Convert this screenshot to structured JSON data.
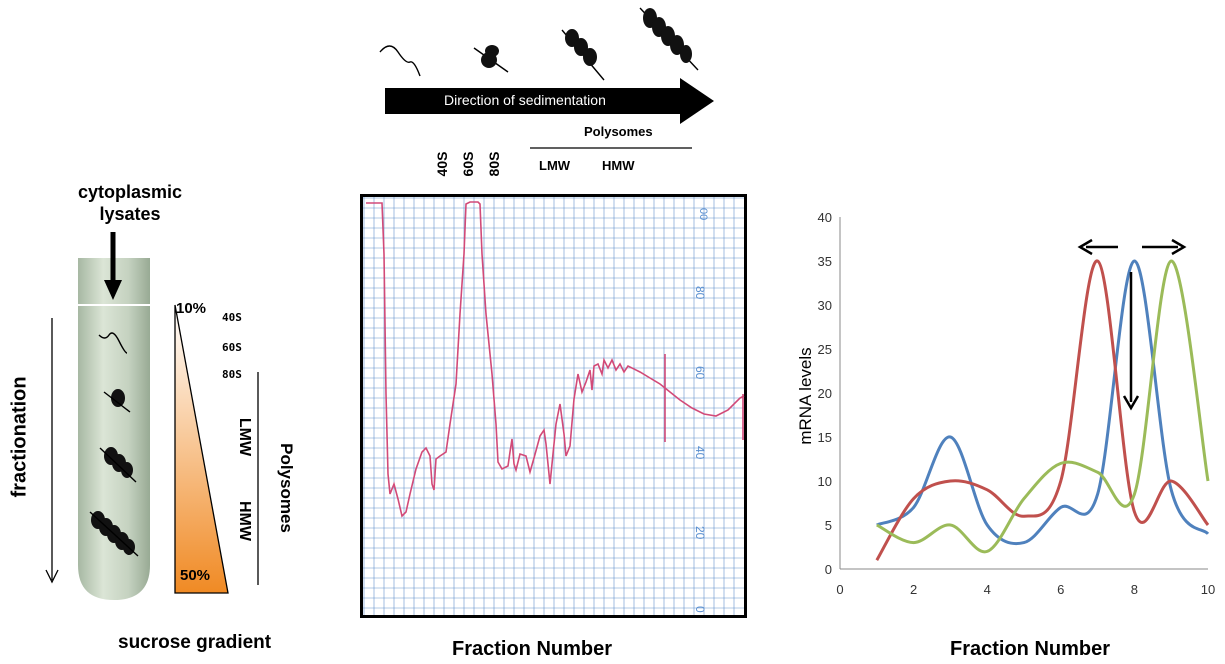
{
  "sedimentation": {
    "arrow_label": "Direction of sedimentation",
    "polysomes_label": "Polysomes",
    "lmw_label": "LMW",
    "hmw_label": "HMW",
    "peaks": [
      "40S",
      "60S",
      "80S"
    ]
  },
  "tube": {
    "title_line1": "cytoplasmic",
    "title_line2": "lysates",
    "fractionation_label": "fractionation",
    "caption": "sucrose gradient",
    "gradient_top": "10%",
    "gradient_bottom": "50%",
    "marks": [
      "40S",
      "60S",
      "80S"
    ],
    "lmw_label": "LMW",
    "hmw_label": "HMW",
    "polysomes_label": "Polysomes",
    "gradient_color": "#f08a24"
  },
  "trace": {
    "caption": "Fraction Number",
    "scale_labels": [
      "80",
      "60",
      "40",
      "20",
      "0"
    ],
    "grid_color": "#4a7fc1",
    "trace_color": "#d24a78"
  },
  "chart_data": {
    "type": "line",
    "xlabel": "Fraction Number",
    "ylabel": "mRNA levels",
    "xlim": [
      0,
      10
    ],
    "ylim": [
      0,
      40
    ],
    "xticks": [
      0,
      2,
      4,
      6,
      8,
      10
    ],
    "yticks": [
      0,
      5,
      10,
      15,
      20,
      25,
      30,
      35,
      40
    ],
    "x": [
      1,
      2,
      3,
      4,
      5,
      6,
      7,
      8,
      9,
      10
    ],
    "series": [
      {
        "color": "#4f81bd",
        "values": [
          5,
          7,
          15,
          5,
          3,
          7,
          8.5,
          35,
          9,
          4
        ]
      },
      {
        "color": "#c0504d",
        "values": [
          1,
          8,
          10,
          9,
          6,
          10,
          35,
          6.5,
          10,
          5
        ]
      },
      {
        "color": "#9bbb59",
        "values": [
          5,
          3,
          5,
          2,
          8,
          12,
          11,
          8.5,
          35,
          10
        ]
      }
    ]
  }
}
